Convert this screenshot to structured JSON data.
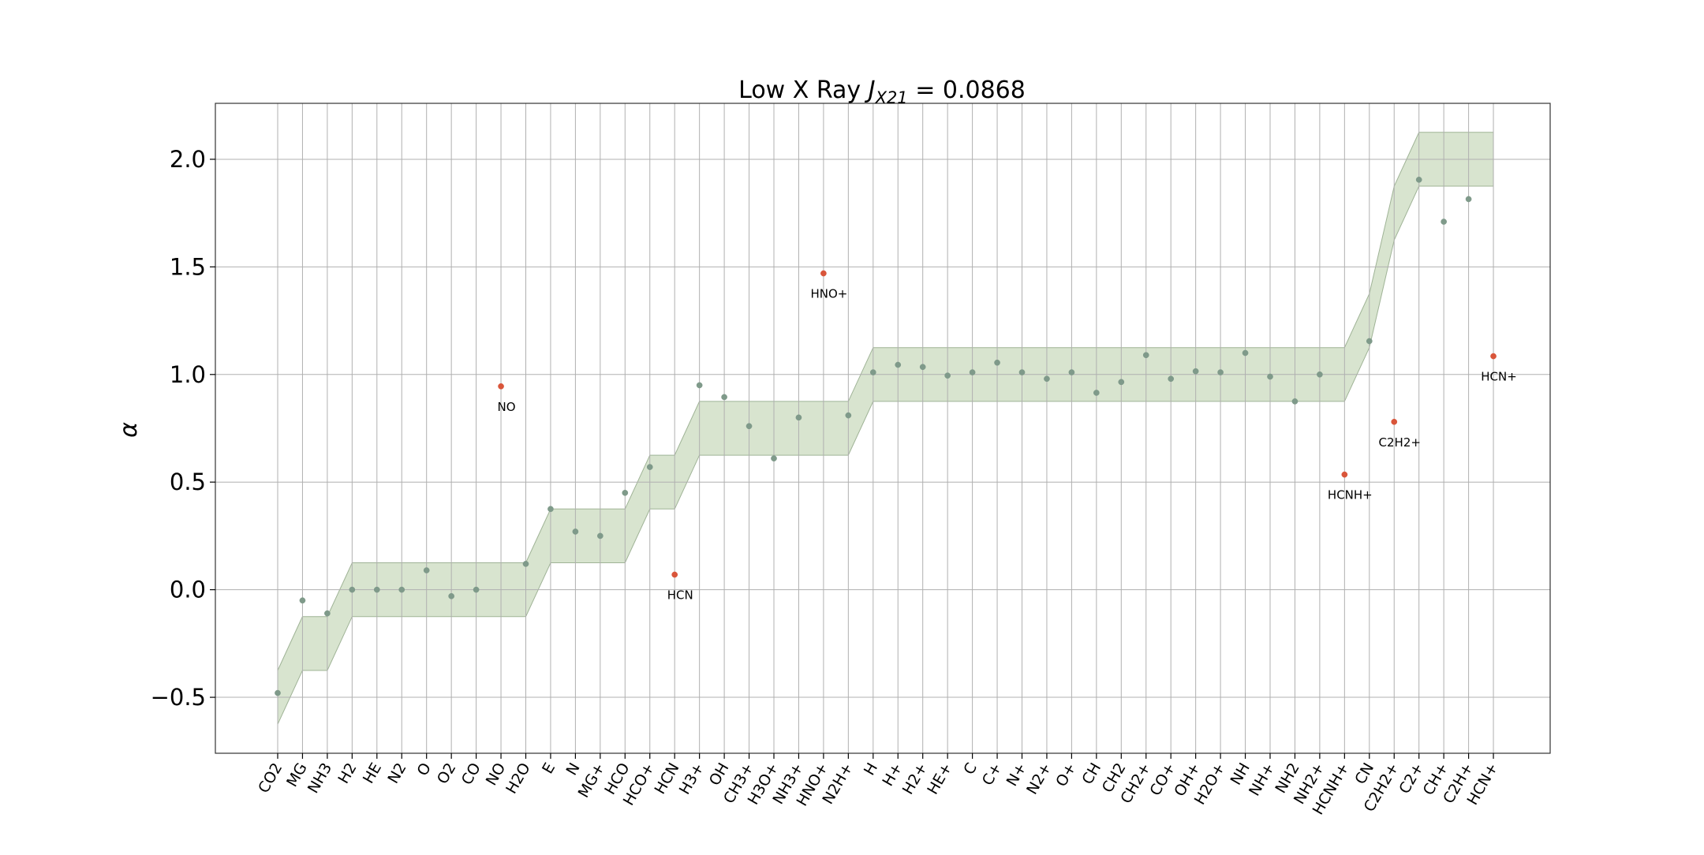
{
  "chart_data": {
    "type": "scatter",
    "title": "Low X Ray J_X21 = 0.0868",
    "title_parts": {
      "prefix": "Low X Ray ",
      "symbol": "J",
      "sub": "X21",
      "suffix": " = 0.0868"
    },
    "xlabel": "",
    "ylabel": "α",
    "ylim": [
      -0.76,
      2.26
    ],
    "yticks": [
      -0.5,
      0.0,
      0.5,
      1.0,
      1.5,
      2.0
    ],
    "ytick_labels": [
      "−0.5",
      "0.0",
      "0.5",
      "1.0",
      "1.5",
      "2.0"
    ],
    "grid": true,
    "categories": [
      "CO2",
      "MG",
      "NH3",
      "H2",
      "HE",
      "N2",
      "O",
      "O2",
      "CO",
      "NO",
      "H2O",
      "E",
      "N",
      "MG+",
      "HCO",
      "HCO+",
      "HCN",
      "H3+",
      "OH",
      "CH3+",
      "H3O+",
      "NH3+",
      "HNO+",
      "N2H+",
      "H",
      "H+",
      "H2+",
      "HE+",
      "C",
      "C+",
      "N+",
      "N2+",
      "O+",
      "CH",
      "CH2",
      "CH2+",
      "CO+",
      "OH+",
      "H2O+",
      "NH",
      "NH+",
      "NH2",
      "NH2+",
      "HCNH+",
      "CN",
      "C2H2+",
      "C2+",
      "CH+",
      "C2H+",
      "HCN+"
    ],
    "series": [
      {
        "values": [
          -0.48,
          -0.05,
          -0.11,
          0.0,
          0.0,
          0.0,
          0.09,
          -0.03,
          0.0,
          null,
          0.12,
          0.375,
          0.27,
          0.25,
          0.45,
          0.57,
          null,
          0.95,
          0.895,
          0.76,
          0.61,
          0.8,
          null,
          0.81,
          1.01,
          1.045,
          1.035,
          0.995,
          1.01,
          1.055,
          1.01,
          0.98,
          1.01,
          0.915,
          0.965,
          1.09,
          0.98,
          1.015,
          1.01,
          1.1,
          0.99,
          0.875,
          1.0,
          null,
          1.155,
          null,
          1.905,
          1.71,
          1.815,
          null
        ],
        "color": "#7f9a8a"
      },
      {
        "values": [
          null,
          null,
          null,
          null,
          null,
          null,
          null,
          null,
          null,
          0.945,
          null,
          null,
          null,
          null,
          null,
          null,
          0.07,
          null,
          null,
          null,
          null,
          null,
          1.47,
          null,
          null,
          null,
          null,
          null,
          null,
          null,
          null,
          null,
          null,
          null,
          null,
          null,
          null,
          null,
          null,
          null,
          null,
          null,
          null,
          0.535,
          null,
          0.78,
          null,
          null,
          null,
          1.085
        ],
        "color": "#d9553a"
      }
    ],
    "outlier_labels": [
      {
        "category": "NO",
        "value": 0.945,
        "text": "NO"
      },
      {
        "category": "HCN",
        "value": 0.07,
        "text": "HCN"
      },
      {
        "category": "HNO+",
        "value": 1.47,
        "text": "HNO+"
      },
      {
        "category": "HCNH+",
        "value": 0.535,
        "text": "HCNH+"
      },
      {
        "category": "C2H2+",
        "value": 0.78,
        "text": "C2H2+"
      },
      {
        "category": "HCN+",
        "value": 1.085,
        "text": "HCN+"
      }
    ],
    "band": {
      "color": "#d8e4cf",
      "edge_color": "#9fb396",
      "center": [
        -0.5,
        -0.25,
        -0.25,
        0.0,
        0.0,
        0.0,
        0.0,
        0.0,
        0.0,
        0.0,
        0.0,
        0.25,
        0.25,
        0.25,
        0.25,
        0.5,
        0.5,
        0.75,
        0.75,
        0.75,
        0.75,
        0.75,
        0.75,
        0.75,
        1.0,
        1.0,
        1.0,
        1.0,
        1.0,
        1.0,
        1.0,
        1.0,
        1.0,
        1.0,
        1.0,
        1.0,
        1.0,
        1.0,
        1.0,
        1.0,
        1.0,
        1.0,
        1.0,
        1.0,
        1.25,
        1.75,
        2.0,
        2.0,
        2.0,
        2.0
      ],
      "half_width": 0.125
    }
  }
}
